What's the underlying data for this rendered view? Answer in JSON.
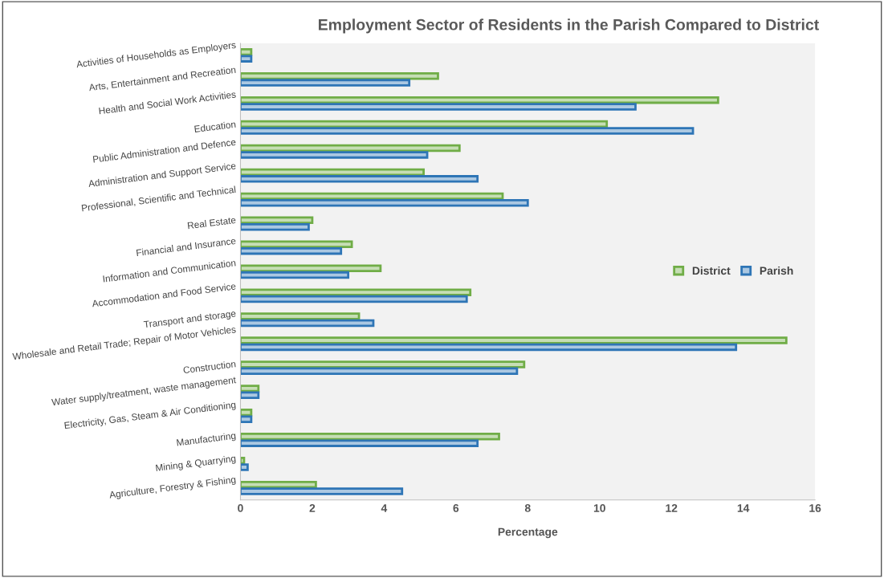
{
  "chart_data": {
    "type": "bar",
    "orientation": "horizontal",
    "title": "Employment Sector of Residents in the Parish Compared to District",
    "xlabel": "Percentage",
    "categories": [
      "Activities of Households as Employers",
      "Arts, Entertainment and Recreation",
      "Health and Social Work Activities",
      "Education",
      "Public Administration and Defence",
      "Administration and Support Service",
      "Professional, Scientific and Technical",
      "Real Estate",
      "Financial and Insurance",
      "Information and Communication",
      "Accommodation and Food Service",
      "Transport and storage",
      "Wholesale and Retail Trade; Repair of Motor Vehicles",
      "Construction",
      "Water supply/treatment, waste management",
      "Electricity, Gas, Steam & Air Conditioning",
      "Manufacturing",
      "Mining & Quarrying",
      "Agriculture, Forestry & Fishing"
    ],
    "series": [
      {
        "name": "District",
        "color": "#70ad47",
        "values": [
          0.3,
          5.5,
          13.3,
          10.2,
          6.1,
          5.1,
          7.3,
          2.0,
          3.1,
          3.9,
          6.4,
          3.3,
          15.2,
          7.9,
          0.5,
          0.3,
          7.2,
          0.1,
          2.1
        ]
      },
      {
        "name": "Parish",
        "color": "#2e75b6",
        "values": [
          0.3,
          4.7,
          11.0,
          12.6,
          5.2,
          6.6,
          8.0,
          1.9,
          2.8,
          3.0,
          6.3,
          3.7,
          13.8,
          7.7,
          0.5,
          0.3,
          6.6,
          0.2,
          4.5
        ]
      }
    ],
    "xlim": [
      0,
      16
    ],
    "xticks": [
      0,
      2,
      4,
      6,
      8,
      10,
      12,
      14,
      16
    ],
    "grid": false,
    "legend": "right"
  }
}
